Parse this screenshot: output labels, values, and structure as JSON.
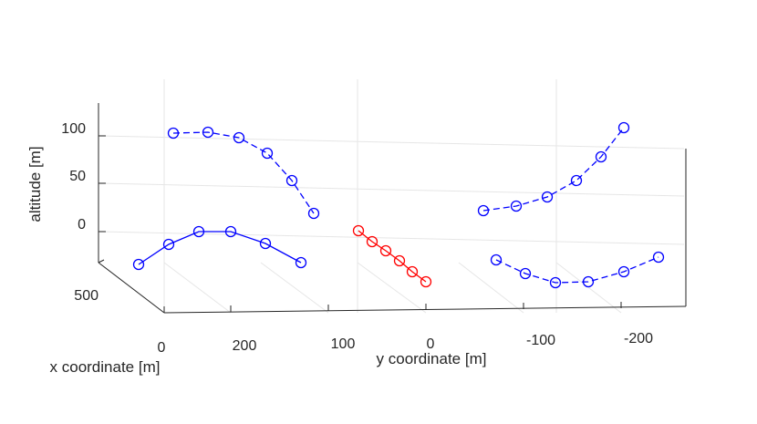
{
  "chart_data": {
    "type": "line3d",
    "title": "",
    "axes": {
      "x": {
        "label": "x coordinate [m]",
        "ticks": [
          "0",
          "500"
        ]
      },
      "y": {
        "label": "y coordinate [m]",
        "ticks": [
          "200",
          "100",
          "0",
          "-100",
          "-200"
        ]
      },
      "z": {
        "label": "altitude [m]",
        "ticks": [
          "0",
          "50",
          "100"
        ]
      }
    },
    "grid": true,
    "series": [
      {
        "style": "dashed",
        "color": "#0000ff",
        "marker": "circle",
        "points": [
          [
            190,
            146
          ],
          [
            228,
            145
          ],
          [
            262,
            151
          ],
          [
            293,
            168
          ],
          [
            320,
            198
          ],
          [
            344,
            234
          ]
        ]
      },
      {
        "style": "solid",
        "color": "#0000ff",
        "marker": "circle",
        "points": [
          [
            152,
            290
          ],
          [
            185,
            268
          ],
          [
            218,
            254
          ],
          [
            253,
            254
          ],
          [
            291,
            267
          ],
          [
            330,
            288
          ]
        ]
      },
      {
        "style": "solid",
        "color": "#ff0000",
        "marker": "circle",
        "points": [
          [
            393,
            253
          ],
          [
            408,
            265
          ],
          [
            423,
            275
          ],
          [
            438,
            286
          ],
          [
            452,
            298
          ],
          [
            467,
            309
          ]
        ]
      },
      {
        "style": "dashed",
        "color": "#0000ff",
        "marker": "circle",
        "points": [
          [
            530,
            231
          ],
          [
            566,
            226
          ],
          [
            600,
            216
          ],
          [
            632,
            198
          ],
          [
            659,
            172
          ],
          [
            684,
            140
          ]
        ]
      },
      {
        "style": "dashed",
        "color": "#0000ff",
        "marker": "circle",
        "points": [
          [
            544,
            285
          ],
          [
            576,
            300
          ],
          [
            609,
            310
          ],
          [
            645,
            309
          ],
          [
            684,
            298
          ],
          [
            722,
            282
          ]
        ]
      }
    ]
  }
}
